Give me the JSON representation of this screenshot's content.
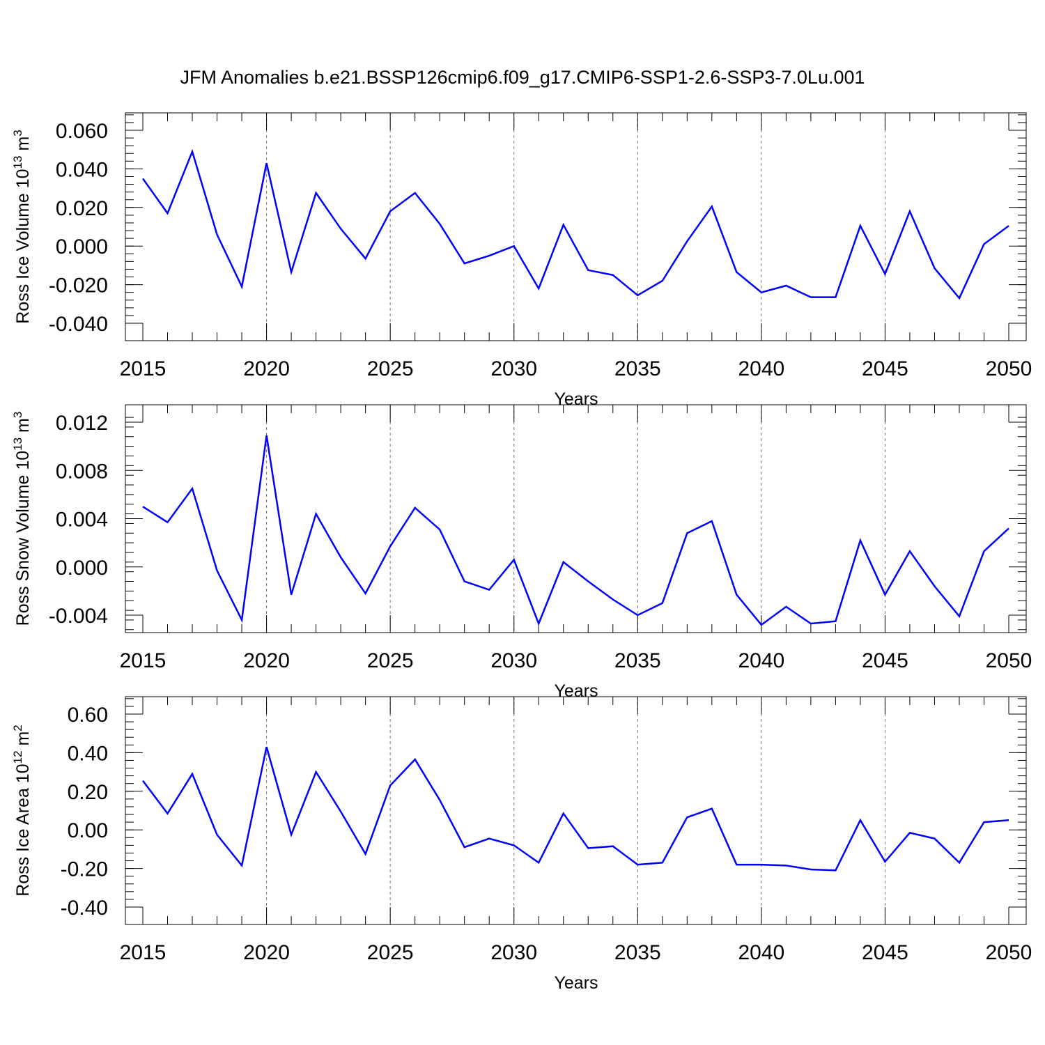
{
  "figure": {
    "title": "JFM Anomalies b.e21.BSSP126cmip6.f09_g17.CMIP6-SSP1-2.6-SSP3-7.0Lu.001"
  },
  "chart_data": [
    {
      "type": "line",
      "title": "",
      "xlabel": "Years",
      "ylabel": {
        "base": "Ross Ice Volume 10",
        "exponent": "13",
        "unit": " m",
        "unit_exponent": "3"
      },
      "xlim": [
        2015,
        2050
      ],
      "ylim": [
        -0.04,
        0.07
      ],
      "xticks": [
        "2015",
        "2020",
        "2025",
        "2030",
        "2035",
        "2040",
        "2045",
        "2050"
      ],
      "yticks": [
        "-0.040",
        "-0.020",
        "0.000",
        "0.020",
        "0.040",
        "0.060"
      ],
      "ytick_values": [
        -0.04,
        -0.02,
        0.0,
        0.02,
        0.04,
        0.06
      ],
      "color": "#0000ff",
      "series": [
        {
          "x": [
            2015,
            2016,
            2017,
            2018,
            2019,
            2020,
            2021,
            2022,
            2023,
            2024,
            2025,
            2026,
            2027,
            2028,
            2029,
            2030,
            2031,
            2032,
            2033,
            2034,
            2035,
            2036,
            2037,
            2038,
            2039,
            2040,
            2041,
            2042,
            2043,
            2044,
            2045,
            2046,
            2047,
            2048,
            2049,
            2050
          ],
          "values": [
            0.035,
            0.017,
            0.049,
            0.006,
            -0.021,
            0.043,
            -0.0135,
            0.0275,
            0.009,
            -0.0065,
            0.018,
            0.0275,
            0.0115,
            -0.009,
            -0.005,
            0.0,
            -0.022,
            0.011,
            -0.0125,
            -0.015,
            -0.0255,
            -0.018,
            0.0025,
            0.0205,
            -0.0135,
            -0.024,
            -0.0205,
            -0.0265,
            -0.0265,
            0.0105,
            -0.0145,
            0.018,
            -0.0115,
            -0.027,
            0.001,
            0.0105
          ]
        }
      ]
    },
    {
      "type": "line",
      "title": "",
      "xlabel": "Years",
      "ylabel": {
        "base": "Ross Snow Volume 10",
        "exponent": "13",
        "unit": " m",
        "unit_exponent": "3"
      },
      "xlim": [
        2015,
        2050
      ],
      "ylim": [
        -0.006,
        0.013
      ],
      "xticks": [
        "2015",
        "2020",
        "2025",
        "2030",
        "2035",
        "2040",
        "2045",
        "2050"
      ],
      "yticks": [
        "-0.004",
        "0.000",
        "0.004",
        "0.008",
        "0.012"
      ],
      "ytick_values": [
        -0.004,
        0.0,
        0.004,
        0.008,
        0.012
      ],
      "color": "#0000ff",
      "series": [
        {
          "x": [
            2015,
            2016,
            2017,
            2018,
            2019,
            2020,
            2021,
            2022,
            2023,
            2024,
            2025,
            2026,
            2027,
            2028,
            2029,
            2030,
            2031,
            2032,
            2033,
            2034,
            2035,
            2036,
            2037,
            2038,
            2039,
            2040,
            2041,
            2042,
            2043,
            2044,
            2045,
            2046,
            2047,
            2048,
            2049,
            2050
          ],
          "values": [
            0.005,
            0.0037,
            0.0065,
            -0.0003,
            -0.0044,
            0.0109,
            -0.0023,
            0.0044,
            0.0008,
            -0.0022,
            0.0017,
            0.0049,
            0.0031,
            -0.0012,
            -0.0019,
            0.0006,
            -0.0047,
            0.0004,
            -0.0012,
            -0.0027,
            -0.004,
            -0.003,
            0.0028,
            0.0038,
            -0.0023,
            -0.0048,
            -0.0033,
            -0.0047,
            -0.0045,
            0.0022,
            -0.0023,
            0.0013,
            -0.0016,
            -0.0041,
            0.0013,
            0.0032
          ]
        }
      ]
    },
    {
      "type": "line",
      "title": "",
      "xlabel": "Years",
      "ylabel": {
        "base": "Ross Ice Area 10",
        "exponent": "12",
        "unit": " m",
        "unit_exponent": "2"
      },
      "xlim": [
        2015,
        2050
      ],
      "ylim": [
        -0.4,
        0.7
      ],
      "xticks": [
        "2015",
        "2020",
        "2025",
        "2030",
        "2035",
        "2040",
        "2045",
        "2050"
      ],
      "yticks": [
        "-0.40",
        "-0.20",
        "0.00",
        "0.20",
        "0.40",
        "0.60"
      ],
      "ytick_values": [
        -0.4,
        -0.2,
        0.0,
        0.2,
        0.4,
        0.6
      ],
      "color": "#0000ff",
      "series": [
        {
          "x": [
            2015,
            2016,
            2017,
            2018,
            2019,
            2020,
            2021,
            2022,
            2023,
            2024,
            2025,
            2026,
            2027,
            2028,
            2029,
            2030,
            2031,
            2032,
            2033,
            2034,
            2035,
            2036,
            2037,
            2038,
            2039,
            2040,
            2041,
            2042,
            2043,
            2044,
            2045,
            2046,
            2047,
            2048,
            2049,
            2050
          ],
          "values": [
            0.255,
            0.085,
            0.29,
            -0.025,
            -0.185,
            0.43,
            -0.025,
            0.3,
            0.095,
            -0.125,
            0.23,
            0.365,
            0.155,
            -0.09,
            -0.045,
            -0.08,
            -0.17,
            0.085,
            -0.095,
            -0.085,
            -0.18,
            -0.17,
            0.065,
            0.11,
            -0.18,
            -0.18,
            -0.185,
            -0.205,
            -0.21,
            0.05,
            -0.165,
            -0.015,
            -0.045,
            -0.17,
            0.04,
            0.05
          ]
        }
      ]
    }
  ]
}
